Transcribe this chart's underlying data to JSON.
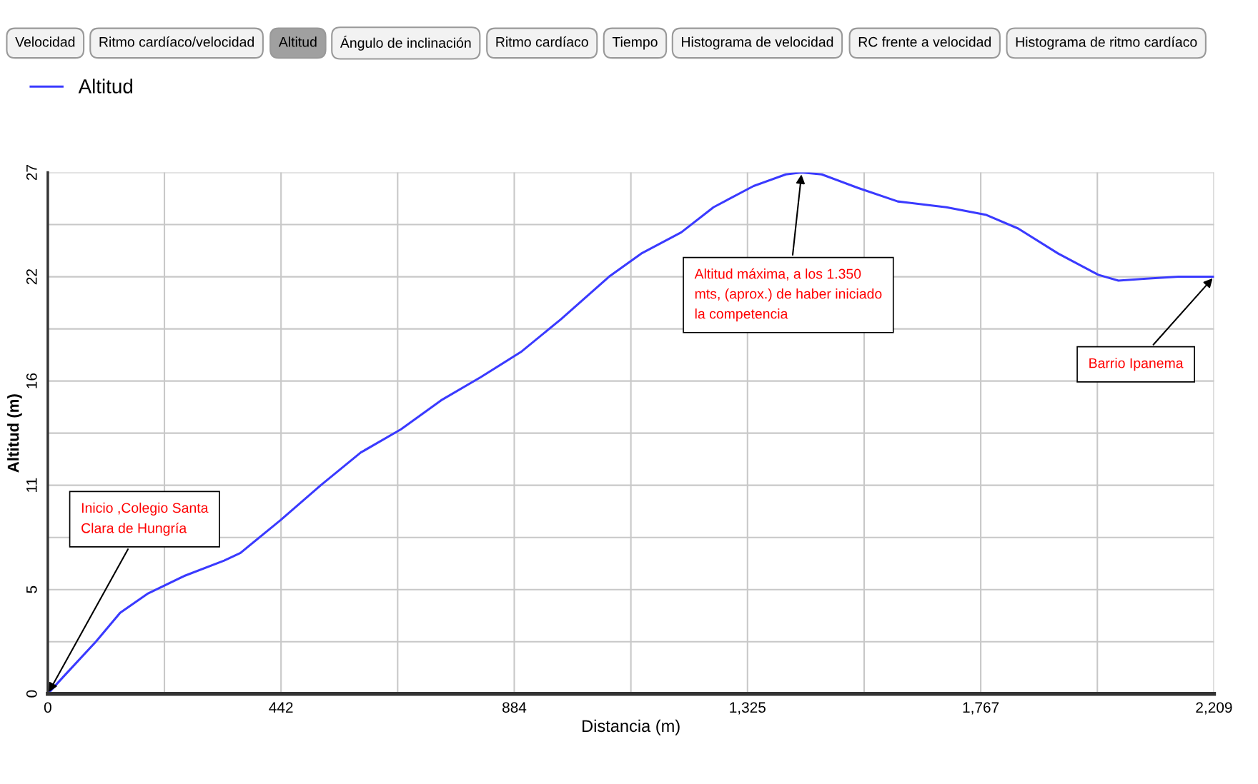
{
  "chart_data": {
    "type": "line",
    "xlabel": "Distancia (m)",
    "ylabel": "Altitud (m)",
    "series": [
      {
        "name": "Altitud",
        "color": "#3a3aff",
        "x": [
          0,
          30,
          91,
          137,
          190,
          258,
          334,
          365,
          441,
          517,
          593,
          669,
          745,
          820,
          896,
          972,
          1063,
          1124,
          1200,
          1261,
          1337,
          1398,
          1428,
          1466,
          1535,
          1610,
          1702,
          1778,
          1838,
          1914,
          1990,
          2028,
          2081,
          2142,
          2209
        ],
        "values": [
          0,
          0.9,
          2.7,
          4.2,
          5.2,
          6.1,
          6.9,
          7.3,
          9.0,
          10.8,
          12.5,
          13.7,
          15.2,
          16.4,
          17.7,
          19.4,
          21.6,
          22.8,
          23.9,
          25.2,
          26.3,
          26.9,
          27.0,
          26.9,
          26.2,
          25.5,
          25.2,
          24.8,
          24.1,
          22.8,
          21.7,
          21.4,
          21.5,
          21.6,
          21.6
        ]
      }
    ],
    "xlim": [
      0,
      2209
    ],
    "xticks": [
      0,
      {
        "value": 220.9,
        "label": null
      },
      {
        "value": 441.8,
        "label": "442"
      },
      {
        "value": 662.7,
        "label": null
      },
      {
        "value": 883.6,
        "label": "884"
      },
      {
        "value": 1104.5,
        "label": null
      },
      {
        "value": 1325.4,
        "label": "1,325"
      },
      {
        "value": 1546.3,
        "label": null
      },
      {
        "value": 1767.2,
        "label": "1,767"
      },
      {
        "value": 1988.1,
        "label": null
      },
      {
        "value": 2209,
        "label": "2,209"
      }
    ],
    "ylim": [
      0,
      27
    ],
    "yticks": [
      0,
      {
        "value": 2.7,
        "label": null
      },
      {
        "value": 5.4,
        "label": "5"
      },
      {
        "value": 8.1,
        "label": null
      },
      {
        "value": 10.8,
        "label": "11"
      },
      {
        "value": 13.5,
        "label": null
      },
      {
        "value": 16.2,
        "label": "16"
      },
      {
        "value": 18.9,
        "label": null
      },
      {
        "value": 21.6,
        "label": "22"
      },
      {
        "value": 24.3,
        "label": null
      },
      27
    ],
    "grid": true,
    "legend": "top left",
    "marker": "none",
    "line_style": "solid",
    "annotations": [
      "Velocidad",
      "Ritmo cardíaco/velocidad",
      "Altitud",
      "Ángulo de inclinación",
      "Ritmo cardíaco",
      "Tiempo",
      "Histograma de velocidad",
      "RC frente a velocidad",
      "Histograma de ritmo cardíaco",
      {
        "text": "Inicio ,Colegio Santa\nClara de Hungría",
        "x": 0,
        "y": 0
      },
      {
        "text": "Altitud máxima, a los 1.350\nmts, (aprox.) de haber iniciado\nla competencia",
        "x": 1428,
        "y": 27.0
      },
      {
        "text": "Barrio Ipanema",
        "x": 2209,
        "y": 21.6
      }
    ]
  }
}
